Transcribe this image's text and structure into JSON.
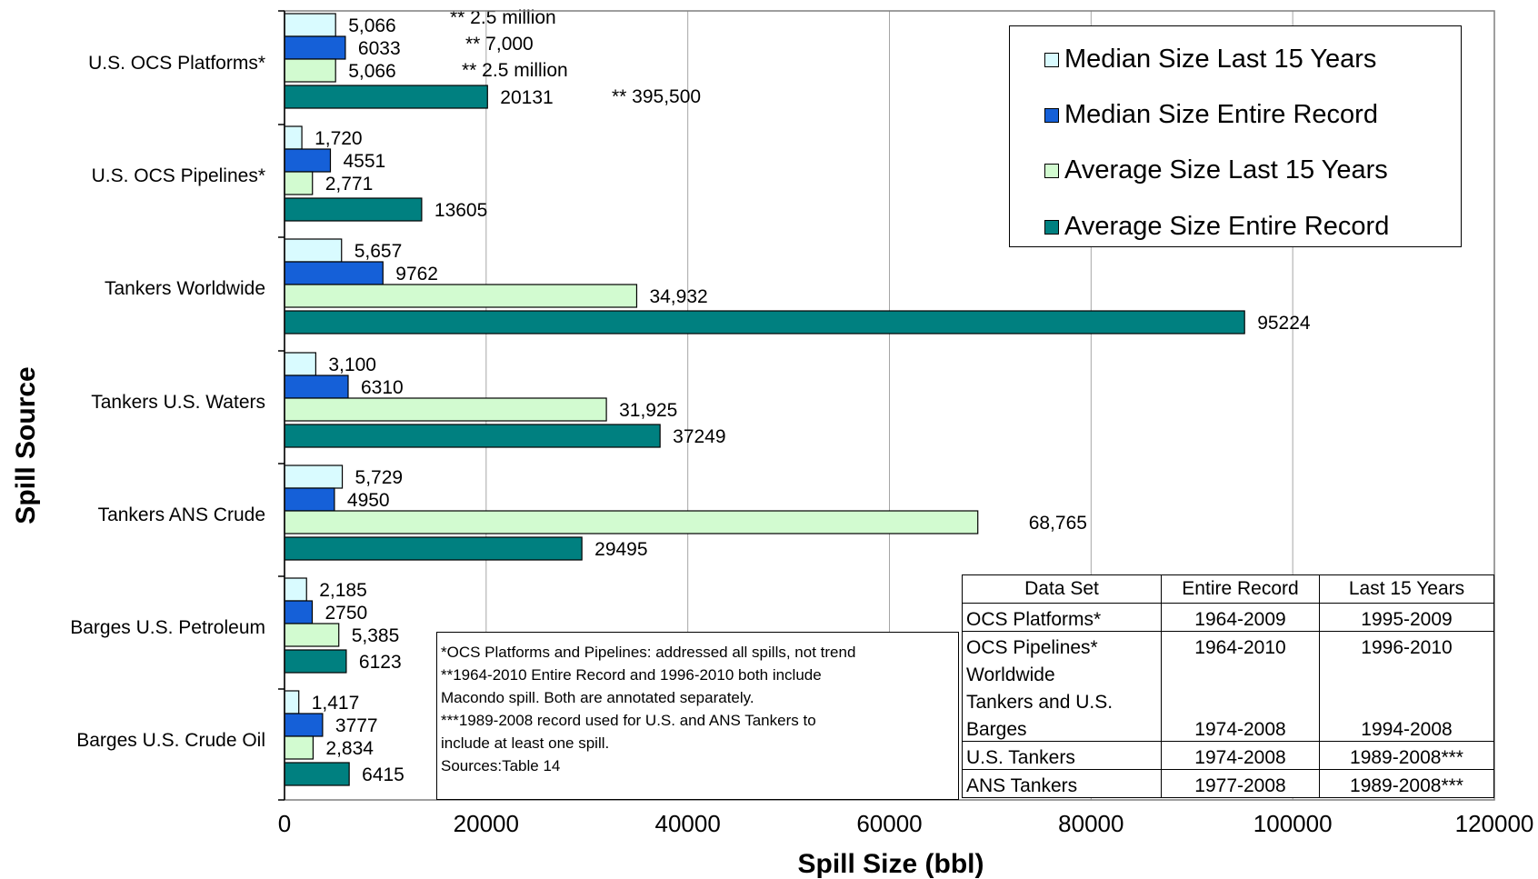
{
  "chart_data": {
    "type": "bar",
    "orientation": "horizontal",
    "xlabel": "Spill Size (bbl)",
    "ylabel": "Spill Source",
    "xlim": [
      0,
      120000
    ],
    "x_ticks": [
      "0",
      "20000",
      "40000",
      "60000",
      "80000",
      "100000",
      "120000"
    ],
    "grid": "vertical gridlines",
    "legend_position": "top-right",
    "categories": [
      "U.S. OCS Platforms*",
      "U.S. OCS Pipelines*",
      "Tankers Worldwide",
      "Tankers U.S. Waters",
      "Tankers ANS Crude",
      "Barges U.S. Petroleum",
      "Barges U.S. Crude Oil"
    ],
    "series": [
      {
        "name": "Median Size Last 15 Years",
        "color": "#d9fbff",
        "values": [
          5066,
          1720,
          5657,
          3100,
          5729,
          2185,
          1417
        ],
        "labels": [
          "5,066",
          "1,720",
          "5,657",
          "3,100",
          "5,729",
          "2,185",
          "1,417"
        ]
      },
      {
        "name": "Median Size Entire Record",
        "color": "#1560d8",
        "values": [
          6033,
          4551,
          9762,
          6310,
          4950,
          2750,
          3777
        ],
        "labels": [
          "6033",
          "4551",
          "9762",
          "6310",
          "4950",
          "2750",
          "3777"
        ]
      },
      {
        "name": "Average Size Last 15 Years",
        "color": "#d2fbd0",
        "values": [
          5066,
          2771,
          34932,
          31925,
          68765,
          5385,
          2834
        ],
        "labels": [
          "5,066",
          "2,771",
          "34,932",
          "31,925",
          "68,765",
          "5,385",
          "2,834"
        ]
      },
      {
        "name": "Average Size Entire Record",
        "color": "#008080",
        "values": [
          20131,
          13605,
          95224,
          37249,
          29495,
          6123,
          6415
        ],
        "labels": [
          "20131",
          "13605",
          "95224",
          "37249",
          "29495",
          "6123",
          "6415"
        ]
      }
    ],
    "annotations": [
      "** 2.5 million",
      "** 7,000",
      "** 2.5 million",
      "** 395,500"
    ]
  },
  "notes": [
    "*OCS Platforms and Pipelines: addressed all spills, not trend",
    "**1964-2010 Entire Record and 1996-2010 both include",
    "Macondo spill. Both are annotated separately.",
    "***1989-2008 record used for U.S. and ANS Tankers to",
    "include at least one spill.",
    "Sources:Table 14"
  ],
  "reference_table": {
    "headers": [
      "Data Set",
      "Entire Record",
      "Last 15 Years"
    ],
    "rows": [
      {
        "lines": [
          "OCS Platforms*"
        ],
        "entire": "1964-2009",
        "last15": "1995-2009"
      },
      {
        "lines": [
          "OCS Pipelines*",
          "Worldwide",
          "Tankers and U.S.",
          "Barges"
        ],
        "entire": [
          "1964-2010",
          "1974-2008"
        ],
        "last15": [
          "1996-2010",
          "1994-2008"
        ]
      },
      {
        "lines": [
          "U.S. Tankers"
        ],
        "entire": "1974-2008",
        "last15": "1989-2008***"
      },
      {
        "lines": [
          "ANS Tankers"
        ],
        "entire": "1977-2008",
        "last15": "1989-2008***"
      }
    ]
  }
}
